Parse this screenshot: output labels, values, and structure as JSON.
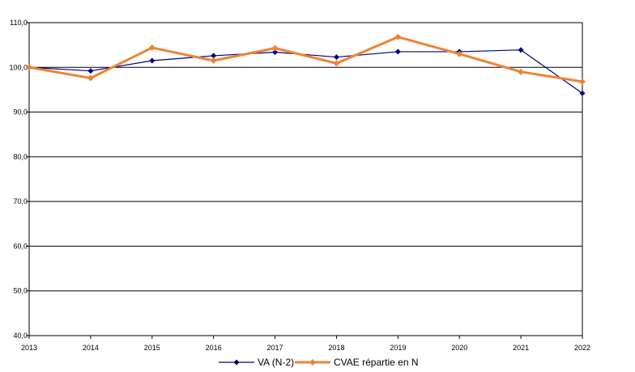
{
  "chart_data": {
    "type": "line",
    "categories": [
      "2013",
      "2014",
      "2015",
      "2016",
      "2017",
      "2018",
      "2019",
      "2020",
      "2021",
      "2022"
    ],
    "series": [
      {
        "name": "VA (N-2)",
        "color": "#00007f",
        "marker": "diamond",
        "values": [
          100.0,
          99.2,
          101.5,
          102.6,
          103.4,
          102.3,
          103.5,
          103.5,
          103.9,
          94.2
        ]
      },
      {
        "name": "CVAE répartie en N",
        "color": "#ee8433",
        "marker": "diamond",
        "values": [
          100.0,
          97.6,
          104.4,
          101.5,
          104.3,
          100.9,
          106.8,
          103.0,
          99.0,
          96.8
        ]
      }
    ],
    "yticks": [
      "40,0",
      "50,0",
      "60,0",
      "70,0",
      "80,0",
      "90,0",
      "100,0",
      "110,0"
    ],
    "ylim": [
      40,
      110
    ],
    "grid": true,
    "legend_position": "bottom"
  }
}
